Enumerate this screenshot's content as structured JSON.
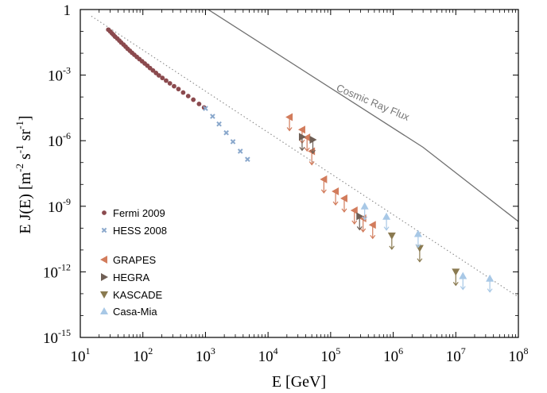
{
  "chart_data": {
    "type": "scatter",
    "xlabel": "E  [GeV]",
    "ylabel": {
      "base": "E J(E)  [m",
      "exp1": "-2",
      "mid1": " s",
      "exp2": "-1",
      "mid2": " sr",
      "exp3": "-1",
      "end": "]"
    },
    "x_scale": "log",
    "y_scale": "log",
    "xlim": [
      10,
      100000000
    ],
    "ylim": [
      1e-15,
      1
    ],
    "x_ticks": [
      {
        "value": 10,
        "base": "10",
        "exp": "1"
      },
      {
        "value": 100,
        "base": "10",
        "exp": "2"
      },
      {
        "value": 1000,
        "base": "10",
        "exp": "3"
      },
      {
        "value": 10000,
        "base": "10",
        "exp": "4"
      },
      {
        "value": 100000,
        "base": "10",
        "exp": "5"
      },
      {
        "value": 1000000,
        "base": "10",
        "exp": "6"
      },
      {
        "value": 10000000,
        "base": "10",
        "exp": "7"
      },
      {
        "value": 100000000,
        "base": "10",
        "exp": "8"
      }
    ],
    "y_ticks": [
      {
        "value": 1,
        "base": "1",
        "exp": ""
      },
      {
        "value": 0.001,
        "base": "10",
        "exp": "-3"
      },
      {
        "value": 1e-06,
        "base": "10",
        "exp": "-6"
      },
      {
        "value": 1e-09,
        "base": "10",
        "exp": "-9"
      },
      {
        "value": 1e-12,
        "base": "10",
        "exp": "-12"
      },
      {
        "value": 1e-15,
        "base": "10",
        "exp": "-15"
      }
    ],
    "lines": [
      {
        "kind": "solid",
        "color": "#707070",
        "label": "Cosmic Ray Flux",
        "points": [
          [
            1000,
            1.2
          ],
          [
            3000000,
            5e-07
          ],
          [
            100000000,
            2e-10
          ]
        ]
      },
      {
        "kind": "dotted",
        "color": "#8a8a8a",
        "label": "",
        "points": [
          [
            15,
            0.5
          ],
          [
            100000000,
            7e-14
          ]
        ]
      }
    ],
    "series": [
      {
        "name": "Fermi 2009",
        "marker": "circle",
        "color": "#8b4a4e",
        "points": [
          [
            28,
            0.12
          ],
          [
            30,
            0.1
          ],
          [
            32,
            0.082
          ],
          [
            34,
            0.069
          ],
          [
            36,
            0.057
          ],
          [
            39,
            0.047
          ],
          [
            42,
            0.038
          ],
          [
            45,
            0.031
          ],
          [
            49,
            0.025
          ],
          [
            53,
            0.02
          ],
          [
            57,
            0.016
          ],
          [
            62,
            0.013
          ],
          [
            67,
            0.0105
          ],
          [
            73,
            0.0085
          ],
          [
            80,
            0.0068
          ],
          [
            88,
            0.0054
          ],
          [
            97,
            0.0043
          ],
          [
            107,
            0.0034
          ],
          [
            118,
            0.0027
          ],
          [
            130,
            0.0021
          ],
          [
            145,
            0.00163
          ],
          [
            162,
            0.00125
          ],
          [
            180,
            0.00097
          ],
          [
            205,
            0.00074
          ],
          [
            235,
            0.00056
          ],
          [
            270,
            0.00042
          ],
          [
            315,
            0.00031
          ],
          [
            370,
            0.00023
          ],
          [
            440,
            0.00016
          ],
          [
            530,
            0.00011
          ],
          [
            640,
            7.5e-05
          ],
          [
            790,
            4.8e-05
          ],
          [
            950,
            3.3e-05
          ]
        ]
      },
      {
        "name": "HESS 2008",
        "marker": "x",
        "color": "#8aa8cc",
        "points": [
          [
            1000,
            3e-05
          ],
          [
            1300,
            1.3e-05
          ],
          [
            1650,
            5.8e-06
          ],
          [
            2150,
            2.3e-06
          ],
          [
            2750,
            9e-07
          ],
          [
            3600,
            3.3e-07
          ],
          [
            4700,
            1.4e-07
          ]
        ]
      },
      {
        "name": "GRAPES",
        "marker": "tri-left",
        "color": "#d27c5c",
        "points": [
          [
            22000,
            1.2e-05
          ],
          [
            35000,
            3.2e-06
          ],
          [
            42000,
            1.4e-06
          ],
          [
            50000,
            3.3e-07
          ],
          [
            78000,
            1.7e-08
          ],
          [
            120000,
            4.8e-09
          ],
          [
            165000,
            2.3e-09
          ],
          [
            240000,
            6.5e-10
          ],
          [
            330000,
            2.8e-10
          ],
          [
            470000,
            1.4e-10
          ]
        ]
      },
      {
        "name": "HEGRA",
        "marker": "tri-right",
        "color": "#6f5f55",
        "points": [
          [
            35000,
            1.5e-06
          ],
          [
            52000,
            1.1e-06
          ],
          [
            290000,
            3.5e-10
          ]
        ]
      },
      {
        "name": "KASCADE",
        "marker": "tri-down",
        "color": "#8a7a50",
        "points": [
          [
            950000,
            4.5e-11
          ],
          [
            2650000,
            1.2e-11
          ],
          [
            10000000,
            1e-12
          ]
        ]
      },
      {
        "name": "Casa-Mia",
        "marker": "tri-up",
        "color": "#a8c8e6",
        "points": [
          [
            350000,
            1e-09
          ],
          [
            780000,
            3.4e-10
          ],
          [
            2500000,
            5.5e-11
          ],
          [
            13000000,
            6.5e-13
          ],
          [
            35000000,
            5e-13
          ]
        ]
      }
    ],
    "annotations": [
      {
        "text": "Cosmic Ray Flux",
        "at": [
          120000,
          0.0002
        ],
        "rotate": 23
      }
    ],
    "legend_position": "lower-left",
    "grid": false
  }
}
